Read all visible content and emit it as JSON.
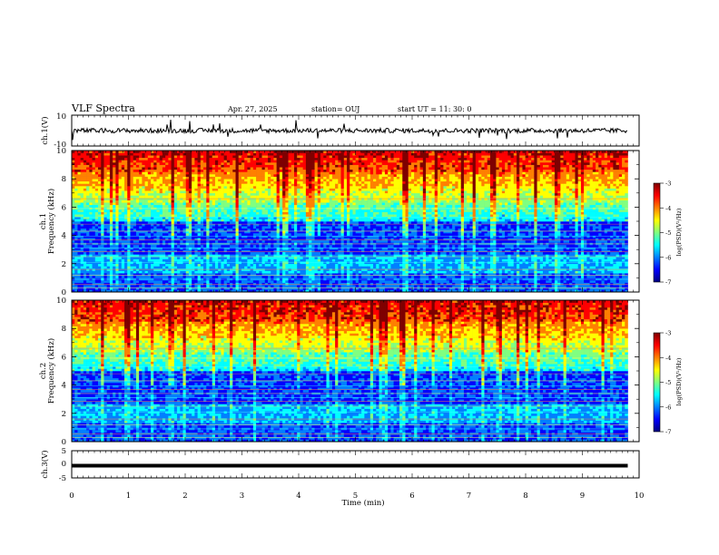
{
  "header": {
    "title": "VLF Spectra",
    "date": "Apr. 27, 2025",
    "station": "station= OUJ",
    "start": "start  UT  =   11: 30: 0"
  },
  "colors": {
    "colormap": [
      "#7f0000",
      "#ff0000",
      "#ff8000",
      "#ffff00",
      "#80ff80",
      "#00ffff",
      "#0080ff",
      "#0000ff",
      "#00007f"
    ],
    "trace": "#000000"
  },
  "chart_data": [
    {
      "type": "line",
      "ylabel": "ch.1(V)",
      "ylim": [
        -10,
        10
      ],
      "ytick_labels": [
        "10",
        "-10"
      ],
      "trace_level": 0,
      "description_values": {
        "baseline": 0,
        "noise_amplitude": 1.5
      }
    },
    {
      "type": "heatmap",
      "ylabel_lines": [
        "ch.1",
        "Frequency (kHz)"
      ],
      "ylim": [
        0,
        10
      ],
      "ytick_labels": [
        "0",
        "2",
        "4",
        "6",
        "8",
        "10"
      ],
      "xlim": [
        0,
        10
      ],
      "data_extent_min": 9.8,
      "colorbar": {
        "label": "log(PSD)(V²/Hz)",
        "range": [
          -7,
          -3
        ],
        "tick_labels": [
          "-3",
          "-4",
          "-5",
          "-6",
          "-7"
        ]
      }
    },
    {
      "type": "heatmap",
      "ylabel_lines": [
        "ch.2",
        "Frequency (kHz)"
      ],
      "ylim": [
        0,
        10
      ],
      "ytick_labels": [
        "0",
        "2",
        "4",
        "6",
        "8",
        "10"
      ],
      "xlim": [
        0,
        10
      ],
      "data_extent_min": 9.8,
      "colorbar": {
        "label": "log(PSD)(V²/Hz)",
        "range": [
          -7,
          -3
        ],
        "tick_labels": [
          "-3",
          "-4",
          "-5",
          "-6",
          "-7"
        ]
      }
    },
    {
      "type": "line",
      "ylabel": "ch.3(V)",
      "ylim": [
        -5,
        5
      ],
      "ytick_labels": [
        "5",
        "0",
        "-5"
      ],
      "trace_level": -0.5
    }
  ],
  "xaxis": {
    "label": "Time  (min)",
    "xlim": [
      0,
      10
    ],
    "tick_labels": [
      "0",
      "1",
      "2",
      "3",
      "4",
      "5",
      "6",
      "7",
      "8",
      "9",
      "10"
    ]
  }
}
